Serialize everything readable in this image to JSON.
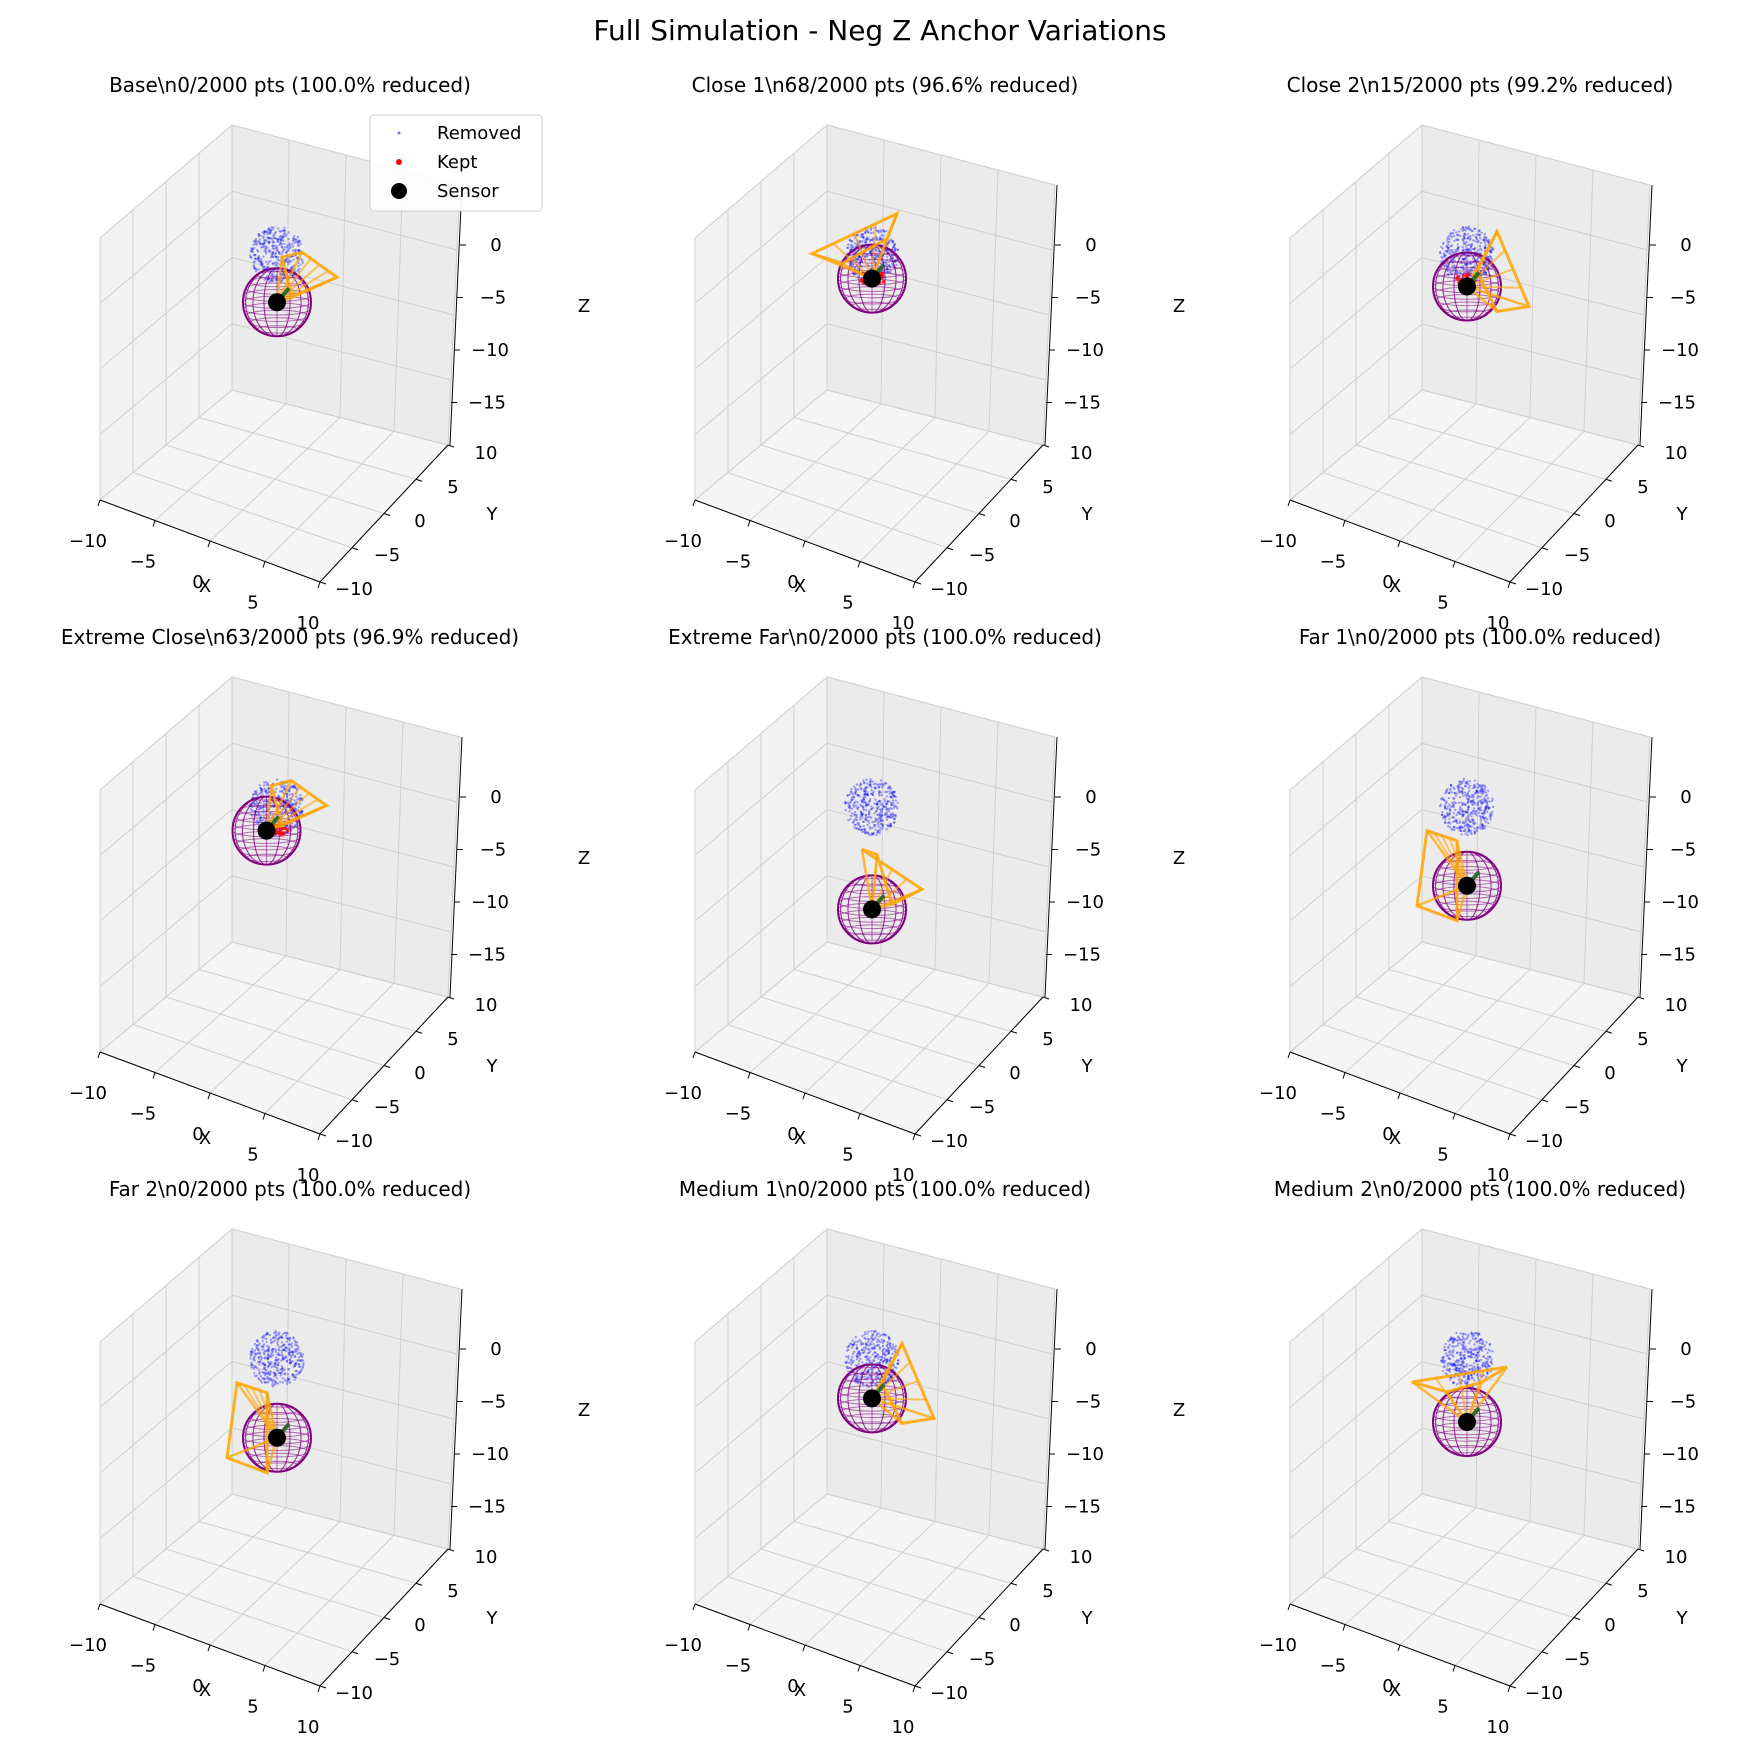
{
  "figure": {
    "title": "Full Simulation - Neg Z Anchor Variations"
  },
  "legend": {
    "position": "upper right of first panel",
    "entries": [
      {
        "label": "Removed",
        "color": "#7777ff",
        "marker": "small-dot"
      },
      {
        "label": "Kept",
        "color": "#ff0000",
        "marker": "dot"
      },
      {
        "label": "Sensor",
        "color": "#000000",
        "marker": "large-dot"
      }
    ]
  },
  "colors": {
    "removed": "#0000ff",
    "kept": "#ff0000",
    "sensor": "#000000",
    "fov": "#ffa500",
    "sphere": "#800080",
    "direction": "#2e6b2e",
    "pane": "#f2f2f2",
    "grid": "#cfcfcf"
  },
  "chart_data": [
    {
      "type": "scatter3d",
      "title": "Base\\n0/2000 pts (100.0% reduced)",
      "kept": 0,
      "total": 2000,
      "reduced_pct": 100.0,
      "cloud_center": [
        0,
        0,
        -2
      ],
      "sensor": [
        0,
        0,
        -8
      ],
      "fov": "right-narrow",
      "xlabel": "X",
      "ylabel": "Y",
      "zlabel": "Z",
      "xlim": [
        -10,
        10
      ],
      "ylim": [
        -10,
        10
      ],
      "zlim": [
        -16,
        3
      ],
      "xticks": [
        "−10",
        "−5",
        "0",
        "5",
        "10"
      ],
      "yticks": [
        "−10",
        "−5",
        "0",
        "5",
        "10"
      ],
      "zticks": [
        "0",
        "−5",
        "−10",
        "−15"
      ]
    },
    {
      "type": "scatter3d",
      "title": "Close 1\\n68/2000 pts (96.6% reduced)",
      "kept": 68,
      "total": 2000,
      "reduced_pct": 96.6,
      "cloud_center": [
        0,
        0,
        -2
      ],
      "sensor": [
        0,
        0,
        -5
      ],
      "fov": "left-wide",
      "xlabel": "X",
      "ylabel": "Y",
      "zlabel": "Z",
      "xlim": [
        -10,
        10
      ],
      "ylim": [
        -10,
        10
      ],
      "zlim": [
        -16,
        3
      ],
      "xticks": [
        "−10",
        "−5",
        "0",
        "5",
        "10"
      ],
      "yticks": [
        "−10",
        "−5",
        "0",
        "5",
        "10"
      ],
      "zticks": [
        "0",
        "−5",
        "−10",
        "−15"
      ]
    },
    {
      "type": "scatter3d",
      "title": "Close 2\\n15/2000 pts (99.2% reduced)",
      "kept": 15,
      "total": 2000,
      "reduced_pct": 99.2,
      "cloud_center": [
        0,
        0,
        -2
      ],
      "sensor": [
        0,
        0,
        -6
      ],
      "fov": "right-down",
      "xlabel": "X",
      "ylabel": "Y",
      "zlabel": "Z",
      "xlim": [
        -10,
        10
      ],
      "ylim": [
        -10,
        10
      ],
      "zlim": [
        -16,
        3
      ],
      "xticks": [
        "−10",
        "−5",
        "0",
        "5",
        "10"
      ],
      "yticks": [
        "−10",
        "−5",
        "0",
        "5",
        "10"
      ],
      "zticks": [
        "0",
        "−5",
        "−10",
        "−15"
      ]
    },
    {
      "type": "scatter3d",
      "title": "Extreme Close\\n63/2000 pts (96.9% reduced)",
      "kept": 63,
      "total": 2000,
      "reduced_pct": 96.9,
      "cloud_center": [
        0,
        0,
        -2
      ],
      "sensor": [
        -1,
        0,
        -5
      ],
      "fov": "right-narrow",
      "xlabel": "X",
      "ylabel": "Y",
      "zlabel": "Z",
      "xlim": [
        -10,
        10
      ],
      "ylim": [
        -10,
        10
      ],
      "zlim": [
        -16,
        3
      ],
      "xticks": [
        "−10",
        "−5",
        "0",
        "5",
        "10"
      ],
      "yticks": [
        "−10",
        "−5",
        "0",
        "5",
        "10"
      ],
      "zticks": [
        "0",
        "−5",
        "−10",
        "−15"
      ]
    },
    {
      "type": "scatter3d",
      "title": "Extreme Far\\n0/2000 pts (100.0% reduced)",
      "kept": 0,
      "total": 2000,
      "reduced_pct": 100.0,
      "cloud_center": [
        0,
        0,
        -2
      ],
      "sensor": [
        0,
        0,
        -15
      ],
      "fov": "right-up",
      "xlabel": "X",
      "ylabel": "Y",
      "zlabel": "Z",
      "xlim": [
        -10,
        10
      ],
      "ylim": [
        -10,
        10
      ],
      "zlim": [
        -16,
        3
      ],
      "xticks": [
        "−10",
        "−5",
        "0",
        "5",
        "10"
      ],
      "yticks": [
        "−10",
        "−5",
        "0",
        "5",
        "10"
      ],
      "zticks": [
        "0",
        "−5",
        "−10",
        "−15"
      ]
    },
    {
      "type": "scatter3d",
      "title": "Far 1\\n0/2000 pts (100.0% reduced)",
      "kept": 0,
      "total": 2000,
      "reduced_pct": 100.0,
      "cloud_center": [
        0,
        0,
        -2
      ],
      "sensor": [
        0,
        0,
        -12
      ],
      "fov": "left-box",
      "xlabel": "X",
      "ylabel": "Y",
      "zlabel": "Z",
      "xlim": [
        -10,
        10
      ],
      "ylim": [
        -10,
        10
      ],
      "zlim": [
        -16,
        3
      ],
      "xticks": [
        "−10",
        "−5",
        "0",
        "5",
        "10"
      ],
      "yticks": [
        "−10",
        "−5",
        "0",
        "5",
        "10"
      ],
      "zticks": [
        "0",
        "−5",
        "−10",
        "−15"
      ]
    },
    {
      "type": "scatter3d",
      "title": "Far 2\\n0/2000 pts (100.0% reduced)",
      "kept": 0,
      "total": 2000,
      "reduced_pct": 100.0,
      "cloud_center": [
        0,
        0,
        -2
      ],
      "sensor": [
        0,
        0,
        -12
      ],
      "fov": "left-box",
      "xlabel": "X",
      "ylabel": "Y",
      "zlabel": "Z",
      "xlim": [
        -10,
        10
      ],
      "ylim": [
        -10,
        10
      ],
      "zlim": [
        -16,
        3
      ],
      "xticks": [
        "−10",
        "−5",
        "0",
        "5",
        "10"
      ],
      "yticks": [
        "−10",
        "−5",
        "0",
        "5",
        "10"
      ],
      "zticks": [
        "0",
        "−5",
        "−10",
        "−15"
      ]
    },
    {
      "type": "scatter3d",
      "title": "Medium 1\\n0/2000 pts (100.0% reduced)",
      "kept": 0,
      "total": 2000,
      "reduced_pct": 100.0,
      "cloud_center": [
        0,
        0,
        -2
      ],
      "sensor": [
        0,
        0,
        -7
      ],
      "fov": "right-down",
      "xlabel": "X",
      "ylabel": "Y",
      "zlabel": "Z",
      "xlim": [
        -10,
        10
      ],
      "ylim": [
        -10,
        10
      ],
      "zlim": [
        -16,
        3
      ],
      "xticks": [
        "−10",
        "−5",
        "0",
        "5",
        "10"
      ],
      "yticks": [
        "−10",
        "−5",
        "0",
        "5",
        "10"
      ],
      "zticks": [
        "0",
        "−5",
        "−10",
        "−15"
      ]
    },
    {
      "type": "scatter3d",
      "title": "Medium 2\\n0/2000 pts (100.0% reduced)",
      "kept": 0,
      "total": 2000,
      "reduced_pct": 100.0,
      "cloud_center": [
        0,
        0,
        -2
      ],
      "sensor": [
        0,
        0,
        -10
      ],
      "fov": "up-wide",
      "xlabel": "X",
      "ylabel": "Y",
      "zlabel": "Z",
      "xlim": [
        -10,
        10
      ],
      "ylim": [
        -10,
        10
      ],
      "zlim": [
        -16,
        3
      ],
      "xticks": [
        "−10",
        "−5",
        "0",
        "5",
        "10"
      ],
      "yticks": [
        "−10",
        "−5",
        "0",
        "5",
        "10"
      ],
      "zticks": [
        "0",
        "−5",
        "−10",
        "−15"
      ]
    }
  ]
}
